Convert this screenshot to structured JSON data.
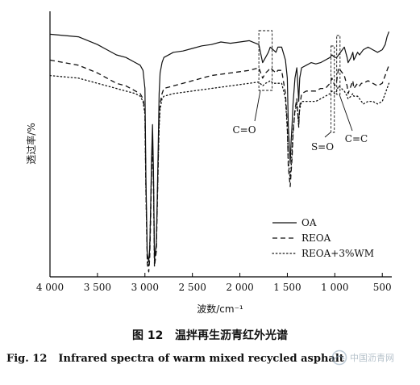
{
  "chart_data": {
    "type": "line",
    "xlabel": "波数/cm⁻¹",
    "ylabel": "透过率/%",
    "xlim": [
      4000,
      400
    ],
    "x_reversed": true,
    "xticks": [
      4000,
      3500,
      3000,
      2500,
      2000,
      1500,
      1000,
      500
    ],
    "xtick_labels": [
      "4 000",
      "3 500",
      "3 000",
      "2 500",
      "2 000",
      "1 500",
      "1 000",
      "500"
    ],
    "ylim": [
      0,
      100
    ],
    "legend_position": "bottom-right",
    "series": [
      {
        "name": "OA",
        "style": "solid",
        "x": [
          4000,
          3700,
          3500,
          3400,
          3300,
          3200,
          3100,
          3050,
          3020,
          3000,
          2990,
          2975,
          2960,
          2950,
          2940,
          2930,
          2920,
          2910,
          2900,
          2880,
          2870,
          2860,
          2850,
          2840,
          2820,
          2800,
          2700,
          2600,
          2500,
          2400,
          2300,
          2200,
          2100,
          2000,
          1900,
          1800,
          1760,
          1730,
          1700,
          1680,
          1650,
          1620,
          1600,
          1560,
          1520,
          1500,
          1490,
          1470,
          1460,
          1450,
          1440,
          1420,
          1400,
          1380,
          1375,
          1370,
          1350,
          1300,
          1250,
          1200,
          1150,
          1100,
          1050,
          1030,
          1000,
          980,
          960,
          900,
          870,
          860,
          830,
          810,
          800,
          760,
          740,
          720,
          700,
          650,
          600,
          550,
          500,
          470,
          450,
          430
        ],
        "y": [
          93,
          92,
          89,
          87,
          85,
          84,
          82,
          81,
          79,
          72,
          38,
          8,
          5,
          10,
          25,
          45,
          58,
          40,
          6,
          12,
          30,
          50,
          70,
          78,
          82,
          84,
          86,
          86.5,
          87.5,
          88.5,
          89,
          90,
          89.5,
          90,
          90.5,
          89,
          82,
          84,
          86,
          88,
          87,
          86,
          88,
          88,
          83,
          76,
          58,
          43,
          52,
          58,
          66,
          76,
          80,
          67,
          72,
          76,
          80,
          81,
          82,
          81.5,
          82,
          83,
          84,
          85,
          84,
          84,
          85,
          88,
          84,
          82,
          84,
          86,
          83,
          86,
          85,
          86,
          87,
          88,
          87,
          86,
          87,
          89,
          92,
          94
        ]
      },
      {
        "name": "REOA",
        "style": "dashed",
        "x": [
          4000,
          3700,
          3500,
          3400,
          3300,
          3200,
          3100,
          3050,
          3020,
          3000,
          2990,
          2975,
          2960,
          2950,
          2940,
          2930,
          2920,
          2910,
          2900,
          2880,
          2870,
          2860,
          2850,
          2840,
          2820,
          2800,
          2700,
          2600,
          2500,
          2400,
          2300,
          2200,
          2100,
          2000,
          1900,
          1800,
          1760,
          1730,
          1700,
          1680,
          1650,
          1620,
          1600,
          1560,
          1520,
          1500,
          1490,
          1470,
          1460,
          1450,
          1440,
          1420,
          1400,
          1380,
          1375,
          1370,
          1350,
          1300,
          1250,
          1200,
          1150,
          1100,
          1050,
          1030,
          1000,
          980,
          960,
          900,
          870,
          860,
          830,
          810,
          800,
          760,
          740,
          720,
          700,
          650,
          600,
          550,
          500,
          470,
          450,
          430
        ],
        "y": [
          83,
          81,
          78,
          76,
          74,
          73,
          71,
          70,
          68,
          63,
          33,
          4,
          1,
          6,
          20,
          40,
          51,
          36,
          3,
          9,
          26,
          44,
          60,
          66,
          70,
          72,
          73,
          74,
          75,
          76,
          77,
          77.5,
          78,
          78.5,
          79,
          80,
          76,
          78,
          79,
          80,
          79,
          78,
          79,
          79,
          70,
          58,
          42,
          34,
          40,
          45,
          54,
          64,
          68,
          57,
          62,
          65,
          70,
          71,
          71,
          71,
          72,
          72,
          74,
          76,
          73,
          75,
          80,
          77,
          73,
          70,
          73,
          75,
          72,
          74,
          73,
          74,
          74,
          75,
          74,
          73,
          74,
          77,
          79,
          81
        ]
      },
      {
        "name": "REOA+3%WM",
        "style": "dotted",
        "x": [
          4000,
          3700,
          3500,
          3400,
          3300,
          3200,
          3100,
          3050,
          3020,
          3000,
          2990,
          2975,
          2960,
          2950,
          2940,
          2930,
          2920,
          2910,
          2900,
          2880,
          2870,
          2860,
          2850,
          2840,
          2820,
          2800,
          2700,
          2600,
          2500,
          2400,
          2300,
          2200,
          2100,
          2000,
          1900,
          1800,
          1760,
          1730,
          1700,
          1680,
          1650,
          1620,
          1600,
          1560,
          1520,
          1500,
          1490,
          1470,
          1460,
          1450,
          1440,
          1420,
          1400,
          1380,
          1375,
          1370,
          1350,
          1300,
          1250,
          1200,
          1150,
          1100,
          1050,
          1030,
          1000,
          980,
          960,
          900,
          870,
          860,
          830,
          810,
          800,
          760,
          740,
          720,
          700,
          650,
          600,
          550,
          500,
          470,
          450,
          430
        ],
        "y": [
          77,
          76,
          74,
          73,
          72,
          71,
          70,
          69,
          67,
          62,
          32,
          6,
          3,
          9,
          24,
          42,
          50,
          36,
          5,
          11,
          27,
          44,
          57,
          64,
          68,
          69,
          70,
          70.5,
          71,
          71.5,
          72,
          72.5,
          73,
          73.5,
          74,
          74.5,
          73,
          74,
          74.5,
          75,
          74,
          74,
          74,
          74,
          68,
          56,
          44,
          37,
          42,
          48,
          56,
          63,
          66,
          58,
          62,
          64,
          67,
          67,
          67,
          67,
          68,
          69,
          70,
          71,
          70,
          71,
          73,
          71,
          69,
          68,
          69,
          70,
          69,
          69,
          68,
          67,
          66,
          67,
          67,
          66,
          67,
          70,
          72,
          74
        ]
      }
    ],
    "annotations": [
      {
        "label": "C=O",
        "x_range": [
          1800,
          1660
        ]
      },
      {
        "label": "S=O",
        "x_range": [
          1040,
          1005
        ]
      },
      {
        "label": "C=C",
        "x_range": [
          980,
          945
        ]
      }
    ]
  },
  "caption": {
    "cn_number": "图 12",
    "cn_title": "温拌再生沥青红外光谱",
    "en_number": "Fig. 12",
    "en_title": "Infrared spectra of warm mixed recycled asphalt"
  },
  "watermark": {
    "text": "中国沥青网",
    "logo_icon": "asphalt-network-logo-icon"
  }
}
